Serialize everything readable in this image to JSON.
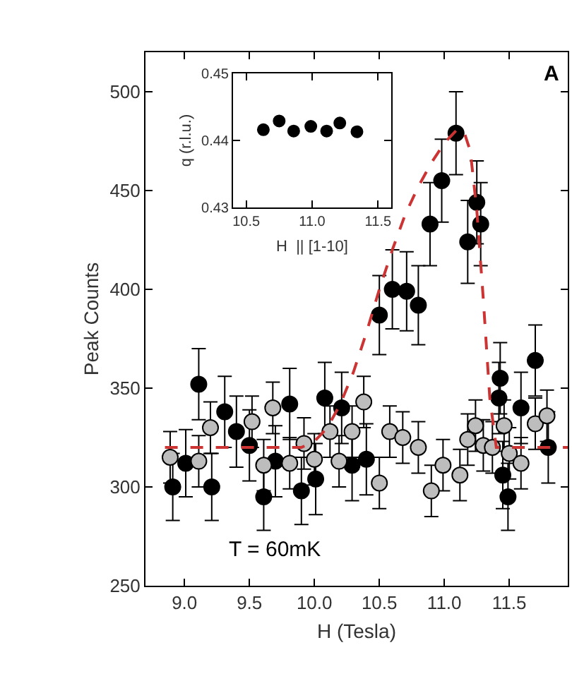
{
  "chart_data": [
    {
      "type": "scatter",
      "xlabel": "H (Tesla)",
      "ylabel": "Peak Counts",
      "xlim": [
        8.7,
        11.95
      ],
      "ylim": [
        250,
        520
      ],
      "xticks": [
        {
          "value": 9,
          "label": "9.0"
        },
        9.5,
        {
          "value": 10,
          "label": "10.0"
        },
        10.5,
        {
          "value": 11,
          "label": "11.0"
        },
        11.5
      ],
      "yticks": [
        250,
        300,
        350,
        400,
        450,
        500
      ],
      "marker": "circle",
      "annotations": [
        "A",
        "T = 60mK"
      ],
      "series": [
        {
          "type": "scatter",
          "color": "#000000",
          "x": [
            8.91,
            9.01,
            9.11,
            9.21,
            9.31,
            9.4,
            9.5,
            9.61,
            9.7,
            9.81,
            9.9,
            10.01,
            10.08,
            10.21,
            10.29,
            10.4,
            10.5,
            10.6,
            10.71,
            10.8,
            10.89,
            10.98,
            11.09,
            11.18,
            11.25,
            11.28,
            11.43,
            11.42,
            11.45,
            11.49,
            11.59,
            11.7,
            11.8
          ],
          "values": [
            300,
            312,
            352,
            300,
            338,
            328,
            321,
            295,
            313,
            342,
            298,
            304,
            345,
            340,
            311,
            314,
            387,
            400,
            399,
            392,
            433,
            455,
            479,
            424,
            444,
            433,
            355,
            345,
            306,
            295,
            340,
            364,
            320
          ],
          "errors": [
            17,
            17,
            18,
            17,
            18,
            18,
            18,
            17,
            18,
            18,
            17,
            18,
            18,
            18,
            18,
            18,
            20,
            20,
            20,
            20,
            21,
            21,
            21,
            21,
            21,
            21,
            18,
            18,
            17,
            17,
            18,
            18,
            18
          ]
        },
        {
          "type": "scatter",
          "color": "#bdbdbd",
          "x": [
            8.89,
            9.11,
            9.2,
            9.52,
            9.61,
            9.68,
            9.81,
            9.92,
            10.0,
            10.12,
            10.19,
            10.29,
            10.38,
            10.5,
            10.58,
            10.68,
            10.8,
            10.9,
            10.99,
            11.12,
            11.18,
            11.24,
            11.3,
            11.37,
            11.46,
            11.5,
            11.59,
            11.7,
            11.79
          ],
          "values": [
            315,
            313,
            330,
            333,
            311,
            340,
            312,
            322,
            314,
            328,
            313,
            328,
            343,
            302,
            328,
            325,
            320,
            298,
            311,
            306,
            324,
            331,
            321,
            320,
            331,
            317,
            312,
            332,
            336
          ],
          "errors": [
            13,
            13,
            13,
            13,
            13,
            13,
            13,
            13,
            13,
            13,
            13,
            13,
            13,
            13,
            13,
            13,
            13,
            13,
            13,
            13,
            13,
            13,
            13,
            13,
            13,
            13,
            13,
            13,
            13
          ]
        },
        {
          "type": "line",
          "color": "#cc3333",
          "marker": "none",
          "line_style": "dashed",
          "x": [
            8.85,
            9.9,
            10.0,
            10.1,
            10.2,
            10.3,
            10.4,
            10.5,
            10.6,
            10.7,
            10.8,
            10.9,
            11.0,
            11.1,
            11.15,
            11.2,
            11.25,
            11.3,
            11.35,
            11.4,
            11.95
          ],
          "values": [
            320,
            320,
            323,
            330,
            342,
            358,
            378,
            400,
            420,
            438,
            452,
            464,
            474,
            481,
            480,
            470,
            440,
            395,
            345,
            320,
            320
          ]
        }
      ]
    },
    {
      "type": "scatter",
      "xlabel": "H  || [1-10]",
      "ylabel": "q (r.l.u.)",
      "xlim": [
        10.4,
        11.6
      ],
      "ylim": [
        0.43,
        0.45
      ],
      "xticks": [
        10.5,
        {
          "value": 11,
          "label": "11.0"
        },
        11.5
      ],
      "yticks": [
        0.43,
        0.44,
        0.45
      ],
      "marker": "circle",
      "series": [
        {
          "color": "#000000",
          "x": [
            10.63,
            10.75,
            10.86,
            10.99,
            11.11,
            11.21,
            11.34
          ],
          "values": [
            0.4416,
            0.4429,
            0.4414,
            0.4421,
            0.4414,
            0.4426,
            0.4413
          ]
        }
      ]
    }
  ]
}
